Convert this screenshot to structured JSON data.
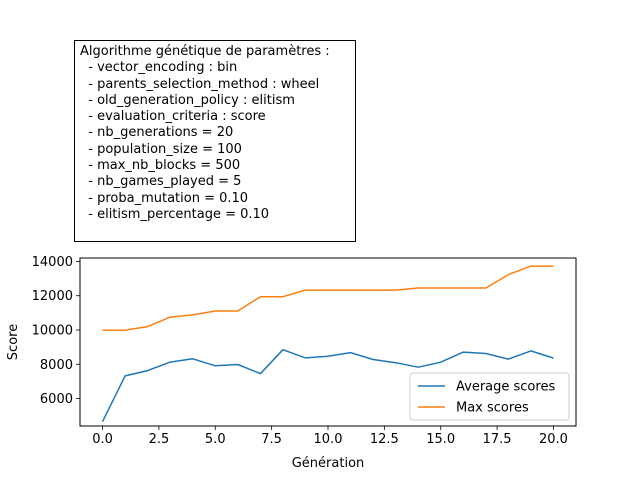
{
  "params_box": {
    "title": "Algorithme génétique de paramètres :",
    "lines": [
      "  - vector_encoding : bin",
      "  - parents_selection_method : wheel",
      "  - old_generation_policy : elitism",
      "  - evaluation_criteria : score",
      "  - nb_generations = 20",
      "  - population_size = 100",
      "  - max_nb_blocks = 500",
      "  - nb_games_played = 5",
      "  - proba_mutation = 0.10",
      "  - elitism_percentage = 0.10"
    ]
  },
  "chart_data": {
    "type": "line",
    "xlabel": "Génération",
    "ylabel": "Score",
    "xlim": [
      -1,
      21
    ],
    "ylim": [
      4400,
      14200
    ],
    "x_ticks": [
      0.0,
      2.5,
      5.0,
      7.5,
      10.0,
      12.5,
      15.0,
      17.5,
      20.0
    ],
    "x_tick_labels": [
      "0.0",
      "2.5",
      "5.0",
      "7.5",
      "10.0",
      "12.5",
      "15.0",
      "17.5",
      "20.0"
    ],
    "y_ticks": [
      6000,
      8000,
      10000,
      12000,
      14000
    ],
    "y_tick_labels": [
      "6000",
      "8000",
      "10000",
      "12000",
      "14000"
    ],
    "grid": false,
    "legend_position": "bottom-right",
    "x": [
      0,
      1,
      2,
      3,
      4,
      5,
      6,
      7,
      8,
      9,
      10,
      11,
      12,
      13,
      14,
      15,
      16,
      17,
      18,
      19,
      20
    ],
    "series": [
      {
        "name": "Average scores",
        "color": "#1f77b4",
        "values": [
          4650,
          7320,
          7630,
          8130,
          8320,
          7910,
          7990,
          7450,
          8850,
          8370,
          8470,
          8680,
          8280,
          8090,
          7830,
          8120,
          8710,
          8630,
          8300,
          8780,
          8360
        ]
      },
      {
        "name": "Max scores",
        "color": "#ff7f0e",
        "values": [
          9990,
          9990,
          10200,
          10750,
          10880,
          11110,
          11110,
          11940,
          11940,
          12330,
          12330,
          12330,
          12330,
          12330,
          12450,
          12450,
          12450,
          12450,
          13230,
          13730,
          13730
        ]
      }
    ]
  }
}
